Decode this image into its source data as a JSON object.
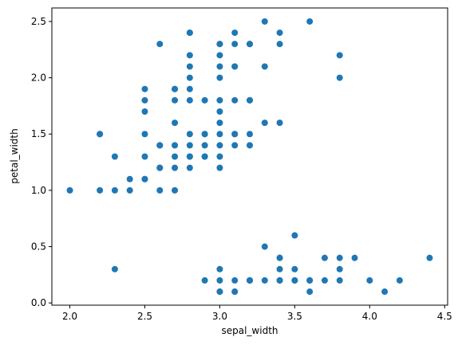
{
  "chart_data": {
    "type": "scatter",
    "title": "",
    "xlabel": "sepal_width",
    "ylabel": "petal_width",
    "xlim": [
      1.88,
      4.52
    ],
    "ylim": [
      -0.02,
      2.62
    ],
    "x_ticks": [
      2.0,
      2.5,
      3.0,
      3.5,
      4.0,
      4.5
    ],
    "x_tick_labels": [
      "2.0",
      "2.5",
      "3.0",
      "3.5",
      "4.0",
      "4.5"
    ],
    "y_ticks": [
      0.0,
      0.5,
      1.0,
      1.5,
      2.0,
      2.5
    ],
    "y_tick_labels": [
      "0.0",
      "0.5",
      "1.0",
      "1.5",
      "2.0",
      "2.5"
    ],
    "grid": false,
    "legend": "none",
    "marker_color": "#1f77b4",
    "x": [
      2.3,
      2.9,
      3.0,
      3.0,
      3.1,
      3.1,
      3.2,
      3.2,
      3.3,
      3.4,
      3.4,
      3.4,
      3.5,
      3.5,
      3.6,
      3.6,
      3.7,
      3.8,
      3.8,
      3.9,
      4.0,
      4.1,
      4.2,
      4.4,
      3.0,
      3.0,
      3.1,
      3.2,
      3.4,
      3.5,
      3.6,
      3.7,
      3.8,
      3.3,
      3.4,
      3.5,
      2.0,
      2.2,
      2.3,
      2.4,
      2.5,
      2.6,
      2.7,
      2.2,
      2.3,
      2.4,
      2.5,
      2.6,
      2.7,
      2.8,
      2.9,
      3.0,
      2.5,
      2.6,
      2.8,
      2.9,
      3.0,
      2.6,
      2.7,
      2.8,
      2.9,
      3.0,
      3.1,
      3.2,
      2.2,
      2.5,
      2.7,
      2.8,
      2.9,
      3.0,
      3.1,
      3.2,
      3.4,
      2.6,
      2.7,
      2.8,
      2.9,
      3.0,
      3.1,
      3.2,
      3.3,
      2.5,
      2.8,
      3.0,
      2.5,
      2.7,
      2.8,
      2.9,
      3.0,
      3.1,
      3.2,
      3.8,
      2.5,
      2.7,
      2.8,
      3.0,
      3.1,
      3.2,
      3.3,
      3.8,
      2.8,
      3.0,
      2.8,
      3.0,
      3.1,
      3.2,
      2.8,
      3.0,
      3.4,
      2.6,
      2.7,
      3.0,
      3.1,
      3.2,
      3.4,
      2.8,
      3.1,
      3.3,
      3.6
    ],
    "y": [
      0.3,
      0.2,
      0.2,
      0.1,
      0.2,
      0.1,
      0.2,
      0.2,
      0.2,
      0.2,
      0.4,
      0.3,
      0.2,
      0.3,
      0.2,
      0.1,
      0.2,
      0.2,
      0.4,
      0.4,
      0.2,
      0.1,
      0.2,
      0.4,
      0.3,
      0.1,
      0.1,
      0.2,
      0.2,
      0.2,
      0.2,
      0.4,
      0.3,
      0.5,
      0.4,
      0.6,
      1.0,
      1.0,
      1.0,
      1.0,
      1.1,
      1.0,
      1.0,
      1.5,
      1.3,
      1.1,
      1.1,
      1.2,
      1.2,
      1.3,
      1.3,
      1.2,
      1.3,
      1.2,
      1.2,
      1.3,
      1.3,
      1.4,
      1.3,
      1.3,
      1.4,
      1.4,
      1.4,
      1.4,
      1.5,
      1.5,
      1.4,
      1.4,
      1.5,
      1.5,
      1.5,
      1.5,
      1.6,
      1.4,
      1.6,
      1.5,
      1.5,
      1.6,
      1.5,
      1.8,
      1.6,
      1.8,
      1.8,
      1.8,
      1.7,
      1.8,
      1.9,
      1.8,
      1.7,
      1.8,
      1.8,
      2.0,
      1.9,
      1.9,
      2.0,
      2.0,
      2.1,
      2.3,
      2.1,
      2.2,
      2.1,
      2.1,
      2.2,
      2.3,
      2.3,
      2.3,
      2.4,
      2.2,
      2.4,
      2.3,
      1.9,
      2.3,
      2.4,
      2.3,
      2.3,
      2.4,
      2.1,
      2.5,
      2.5
    ]
  }
}
